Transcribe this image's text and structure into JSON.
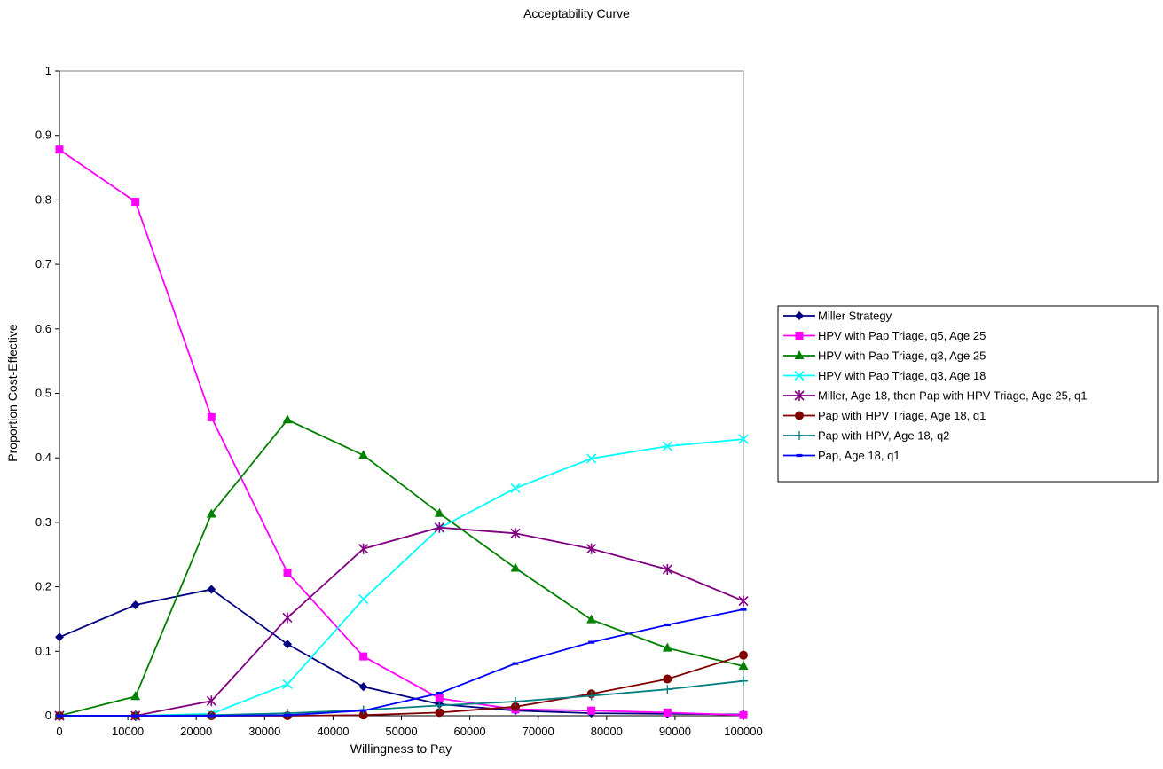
{
  "chart_data": {
    "type": "line",
    "title": "Acceptability Curve",
    "xlabel": "Willingness to Pay",
    "ylabel": "Proportion Cost-Effective",
    "xlim": [
      0,
      100000
    ],
    "ylim": [
      0,
      1
    ],
    "x": [
      0,
      11111,
      22222,
      33333,
      44444,
      55556,
      66667,
      77778,
      88889,
      100000
    ],
    "x_tick_labels": [
      "0",
      "10000",
      "20000",
      "30000",
      "40000",
      "50000",
      "60000",
      "70000",
      "80000",
      "90000",
      "100000"
    ],
    "x_tick_values": [
      0,
      10000,
      20000,
      30000,
      40000,
      50000,
      60000,
      70000,
      80000,
      90000,
      100000
    ],
    "y_tick_labels": [
      "0",
      "0.1",
      "0.2",
      "0.3",
      "0.4",
      "0.5",
      "0.6",
      "0.7",
      "0.8",
      "0.9",
      "1"
    ],
    "y_tick_values": [
      0,
      0.1,
      0.2,
      0.3,
      0.4,
      0.5,
      0.6,
      0.7,
      0.8,
      0.9,
      1
    ],
    "grid": false,
    "legend_position": "right",
    "series": [
      {
        "name": "Miller Strategy",
        "color": "#000080",
        "marker": "diamond",
        "values": [
          0.122,
          0.172,
          0.196,
          0.111,
          0.045,
          0.018,
          0.008,
          0.004,
          0.003,
          0.002
        ]
      },
      {
        "name": "HPV with Pap Triage, q5, Age 25",
        "color": "#ff00ff",
        "marker": "square",
        "values": [
          0.878,
          0.797,
          0.463,
          0.222,
          0.092,
          0.027,
          0.01,
          0.008,
          0.005,
          0.001
        ]
      },
      {
        "name": "HPV with Pap Triage, q3, Age 25",
        "color": "#008000",
        "marker": "triangle",
        "values": [
          0.0,
          0.03,
          0.313,
          0.459,
          0.404,
          0.314,
          0.229,
          0.149,
          0.105,
          0.077
        ]
      },
      {
        "name": "HPV with Pap Triage, q3, Age 18",
        "color": "#00ffff",
        "marker": "x",
        "values": [
          0.0,
          0.0,
          0.003,
          0.049,
          0.181,
          0.291,
          0.353,
          0.399,
          0.418,
          0.429
        ]
      },
      {
        "name": "Miller, Age 18, then Pap with HPV Triage, Age 25, q1",
        "color": "#800080",
        "marker": "star",
        "values": [
          0.0,
          0.0,
          0.023,
          0.152,
          0.259,
          0.292,
          0.283,
          0.259,
          0.227,
          0.178
        ]
      },
      {
        "name": "Pap with HPV Triage, Age 18, q1",
        "color": "#800000",
        "marker": "circle",
        "values": [
          0.0,
          0.0,
          0.0,
          0.0,
          0.001,
          0.005,
          0.014,
          0.034,
          0.057,
          0.094
        ]
      },
      {
        "name": "Pap with HPV, Age 18, q2",
        "color": "#008080",
        "marker": "plus",
        "values": [
          0.0,
          0.0,
          0.001,
          0.004,
          0.009,
          0.016,
          0.022,
          0.031,
          0.041,
          0.054
        ]
      },
      {
        "name": "Pap, Age 18, q1",
        "color": "#0000ff",
        "marker": "dash",
        "values": [
          0.0,
          0.0,
          0.0,
          0.001,
          0.008,
          0.035,
          0.081,
          0.114,
          0.141,
          0.165
        ]
      }
    ]
  }
}
